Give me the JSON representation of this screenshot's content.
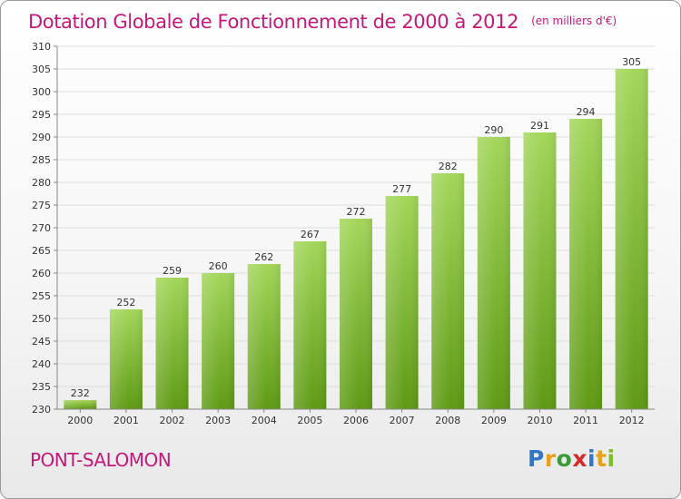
{
  "header": {
    "title": "Dotation Globale de Fonctionnement de 2000 à 2012",
    "unit_note": "(en milliers d'€)"
  },
  "footer": {
    "commune": "PONT-SALOMON",
    "logo_text": "Proxiti"
  },
  "colors": {
    "title": "#c4197a",
    "bar_light": "#a3d65a",
    "bar_dark": "#5e9a14",
    "grid": "#dddddd",
    "axis": "#888888"
  },
  "chart_data": {
    "type": "bar",
    "title": "Dotation Globale de Fonctionnement de 2000 à 2012",
    "subtitle": "(en milliers d'€)",
    "xlabel": "",
    "ylabel": "",
    "categories": [
      "2000",
      "2001",
      "2002",
      "2003",
      "2004",
      "2005",
      "2006",
      "2007",
      "2008",
      "2009",
      "2010",
      "2011",
      "2012"
    ],
    "values": [
      232,
      252,
      259,
      260,
      262,
      267,
      272,
      277,
      282,
      290,
      291,
      294,
      305
    ],
    "ylim": [
      230,
      310
    ],
    "yticks": [
      230,
      235,
      240,
      245,
      250,
      255,
      260,
      265,
      270,
      275,
      280,
      285,
      290,
      295,
      300,
      305,
      310
    ],
    "grid": true,
    "data_labels": true,
    "legend": "none"
  }
}
